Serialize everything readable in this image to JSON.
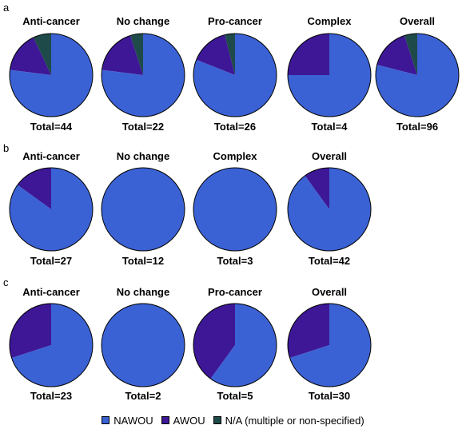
{
  "colors": {
    "NAWOU": "#3b62d4",
    "AWOU": "#3d1796",
    "NA": "#1f4a4a",
    "outline": "#000000"
  },
  "legend": [
    {
      "key": "NAWOU",
      "label": "NAWOU"
    },
    {
      "key": "AWOU",
      "label": "AWOU"
    },
    {
      "key": "NA",
      "label": "N/A (multiple or non-specified)"
    }
  ],
  "chart_data": [
    {
      "type": "pie",
      "panel": "a",
      "pies": [
        {
          "title": "Anti-cancer",
          "total": "Total=44",
          "values": {
            "NAWOU": 0.77,
            "AWOU": 0.16,
            "NA": 0.07
          }
        },
        {
          "title": "No change",
          "total": "Total=22",
          "values": {
            "NAWOU": 0.77,
            "AWOU": 0.18,
            "NA": 0.05
          }
        },
        {
          "title": "Pro-cancer",
          "total": "Total=26",
          "values": {
            "NAWOU": 0.81,
            "AWOU": 0.15,
            "NA": 0.04
          }
        },
        {
          "title": "Complex",
          "total": "Total=4",
          "values": {
            "NAWOU": 0.75,
            "AWOU": 0.25,
            "NA": 0.0
          }
        },
        {
          "title": "Overall",
          "total": "Total=96",
          "values": {
            "NAWOU": 0.79,
            "AWOU": 0.16,
            "NA": 0.05
          }
        }
      ]
    },
    {
      "type": "pie",
      "panel": "b",
      "pies": [
        {
          "title": "Anti-cancer",
          "total": "Total=27",
          "values": {
            "NAWOU": 0.85,
            "AWOU": 0.15,
            "NA": 0.0
          }
        },
        {
          "title": "No change",
          "total": "Total=12",
          "values": {
            "NAWOU": 1.0,
            "AWOU": 0.0,
            "NA": 0.0
          }
        },
        {
          "title": "Complex",
          "total": "Total=3",
          "values": {
            "NAWOU": 1.0,
            "AWOU": 0.0,
            "NA": 0.0
          }
        },
        {
          "title": "Overall",
          "total": "Total=42",
          "values": {
            "NAWOU": 0.9,
            "AWOU": 0.1,
            "NA": 0.0
          }
        }
      ]
    },
    {
      "type": "pie",
      "panel": "c",
      "pies": [
        {
          "title": "Anti-cancer",
          "total": "Total=23",
          "values": {
            "NAWOU": 0.7,
            "AWOU": 0.3,
            "NA": 0.0
          }
        },
        {
          "title": "No change",
          "total": "Total=2",
          "values": {
            "NAWOU": 1.0,
            "AWOU": 0.0,
            "NA": 0.0
          }
        },
        {
          "title": "Pro-cancer",
          "total": "Total=5",
          "values": {
            "NAWOU": 0.6,
            "AWOU": 0.4,
            "NA": 0.0
          }
        },
        {
          "title": "Overall",
          "total": "Total=30",
          "values": {
            "NAWOU": 0.7,
            "AWOU": 0.3,
            "NA": 0.0
          }
        }
      ]
    }
  ]
}
